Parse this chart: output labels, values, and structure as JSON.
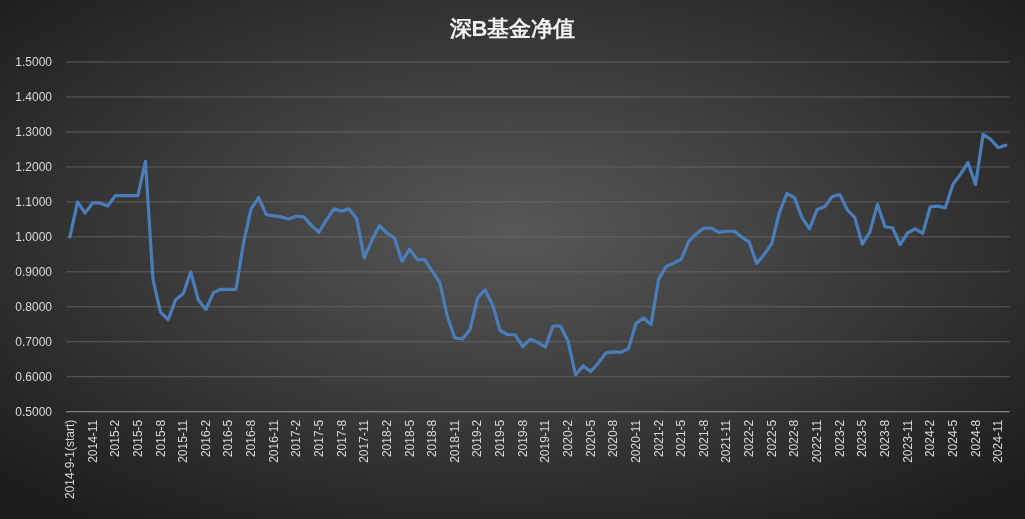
{
  "chart_data": {
    "type": "line",
    "title": "深B基金净值",
    "categories": [
      "2014-9-1(start)",
      null,
      null,
      "2014-11",
      null,
      null,
      "2015-2",
      null,
      null,
      "2015-5",
      null,
      null,
      "2015-8",
      null,
      null,
      "2015-11",
      null,
      null,
      "2016-2",
      null,
      null,
      "2016-5",
      null,
      null,
      "2016-8",
      null,
      null,
      "2016-11",
      null,
      null,
      "2017-2",
      null,
      null,
      "2017-5",
      null,
      null,
      "2017-8",
      null,
      null,
      "2017-11",
      null,
      null,
      "2018-2",
      null,
      null,
      "2018-5",
      null,
      null,
      "2018-8",
      null,
      null,
      "2018-11",
      null,
      null,
      "2019-2",
      null,
      null,
      "2019-5",
      null,
      null,
      "2019-8",
      null,
      null,
      "2019-11",
      null,
      null,
      "2020-2",
      null,
      null,
      "2020-5",
      null,
      null,
      "2020-8",
      null,
      null,
      "2020-11",
      null,
      null,
      "2021-2",
      null,
      null,
      "2021-5",
      null,
      null,
      "2021-8",
      null,
      null,
      "2021-11",
      null,
      null,
      "2022-2",
      null,
      null,
      "2022-5",
      null,
      null,
      "2022-8",
      null,
      null,
      "2022-11",
      null,
      null,
      "2023-2",
      null,
      null,
      "2023-5",
      null,
      null,
      "2023-8",
      null,
      null,
      "2023-11",
      null,
      null,
      "2024-2",
      null,
      null,
      "2024-5",
      null,
      null,
      "2024-8",
      null,
      null,
      "2024-11",
      null
    ],
    "values": [
      1.0,
      1.1,
      1.068,
      1.097,
      1.097,
      1.088,
      1.118,
      1.118,
      1.118,
      1.118,
      1.216,
      0.878,
      0.785,
      0.763,
      0.82,
      0.837,
      0.9,
      0.82,
      0.792,
      0.84,
      0.85,
      0.85,
      0.85,
      0.983,
      1.08,
      1.112,
      1.064,
      1.06,
      1.057,
      1.051,
      1.059,
      1.057,
      1.032,
      1.013,
      1.049,
      1.08,
      1.073,
      1.08,
      1.051,
      0.94,
      0.99,
      1.032,
      1.011,
      0.997,
      0.93,
      0.965,
      0.935,
      0.935,
      0.902,
      0.87,
      0.773,
      0.711,
      0.708,
      0.734,
      0.825,
      0.849,
      0.806,
      0.732,
      0.72,
      0.72,
      0.686,
      0.707,
      0.698,
      0.685,
      0.745,
      0.745,
      0.702,
      0.605,
      0.631,
      0.615,
      0.639,
      0.668,
      0.671,
      0.67,
      0.68,
      0.752,
      0.768,
      0.749,
      0.879,
      0.915,
      0.925,
      0.936,
      0.987,
      1.009,
      1.025,
      1.025,
      1.013,
      1.016,
      1.016,
      1.0,
      0.985,
      0.924,
      0.95,
      0.981,
      1.069,
      1.124,
      1.112,
      1.055,
      1.023,
      1.078,
      1.086,
      1.115,
      1.121,
      1.078,
      1.055,
      0.979,
      1.014,
      1.093,
      1.029,
      1.026,
      0.978,
      1.011,
      1.023,
      1.01,
      1.086,
      1.088,
      1.083,
      1.15,
      1.179,
      1.212,
      1.15,
      1.293,
      1.279,
      1.255,
      1.262
    ],
    "color": "#4a7ebb",
    "ylim": [
      0.5,
      1.5
    ],
    "yticks": [
      {
        "value": 0.5,
        "label": "0.5000"
      },
      {
        "value": 0.6,
        "label": "0.6000"
      },
      {
        "value": 0.7,
        "label": "0.7000"
      },
      {
        "value": 0.8,
        "label": "0.8000"
      },
      {
        "value": 0.9,
        "label": "0.9000"
      },
      {
        "value": 1.0,
        "label": "1.0000"
      },
      {
        "value": 1.1,
        "label": "1.1000"
      },
      {
        "value": 1.2,
        "label": "1.2000"
      },
      {
        "value": 1.3,
        "label": "1.3000"
      },
      {
        "value": 1.4,
        "label": "1.4000"
      },
      {
        "value": 1.5,
        "label": "1.5000"
      }
    ],
    "grid": "y"
  }
}
